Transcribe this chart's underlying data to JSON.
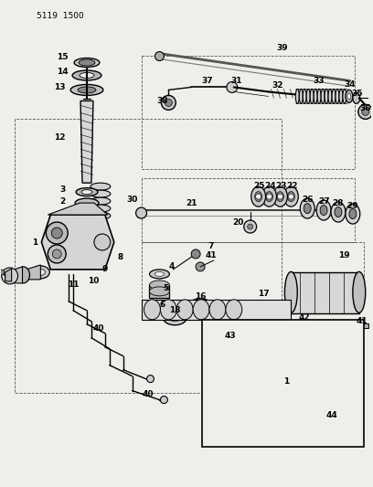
{
  "title": "5119 1500",
  "bg": "#f0eeea",
  "fg": "#1a1a1a",
  "fig_w": 4.08,
  "fig_h": 5.33,
  "dpi": 100
}
